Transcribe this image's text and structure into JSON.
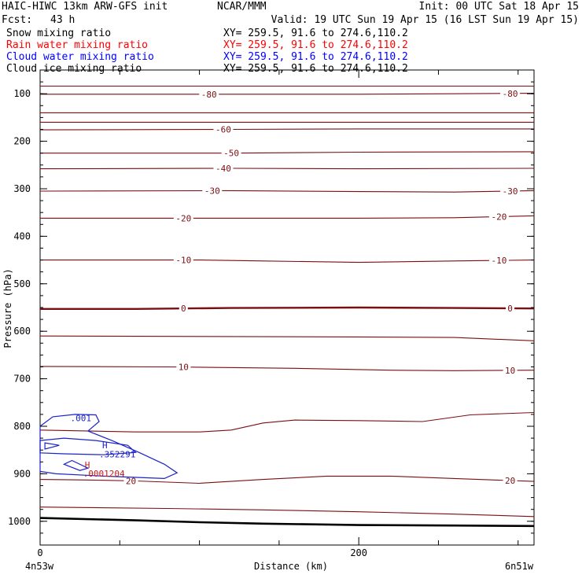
{
  "header": {
    "model_line": "HAIC-HIWC 13km ARW-GFS init",
    "org": "NCAR/MMM",
    "init": "Init: 00 UTC Sat 18 Apr 15",
    "fcst_label": "Fcst:",
    "fcst_value": "43 h",
    "valid": "Valid: 19 UTC Sun 19 Apr 15 (16 LST Sun 19 Apr 15)",
    "fields": [
      {
        "name": "Snow mixing ratio",
        "xy": "XY= 259.5, 91.6 to 274.6,110.2",
        "color": "#000000"
      },
      {
        "name": "Rain water mixing ratio",
        "xy": "XY= 259.5, 91.6 to 274.6,110.2",
        "color": "#ff0000"
      },
      {
        "name": "Cloud water mixing ratio",
        "xy": "XY= 259.5, 91.6 to 274.6,110.2",
        "color": "#0000ff"
      },
      {
        "name": "Cloud ice mixing ratio",
        "xy": "XY= 259.5, 91.6 to 274.6,110.2",
        "color": "#000000"
      }
    ]
  },
  "chart_data": {
    "type": "line",
    "xlabel": "Distance (km)",
    "ylabel": "Pressure (hPa)",
    "xlim": [
      0,
      310
    ],
    "ylim": [
      1050,
      50
    ],
    "x_ticks": [
      0,
      200
    ],
    "x_minor_ticks": [
      50,
      100,
      150,
      250,
      300
    ],
    "y_ticks": [
      100,
      200,
      300,
      400,
      500,
      600,
      700,
      800,
      900,
      1000
    ],
    "y_minor_step": 25,
    "endpoint_labels": {
      "left": "4n53w",
      "right": "6n51w"
    },
    "colors": {
      "temperature": "#7a0f12",
      "cloud_water": "#1a23c8",
      "rain": "#c81a1a",
      "terrain": "#000000",
      "frame": "#000000"
    },
    "isotherms": [
      {
        "value": 0,
        "label": "0",
        "bold": true,
        "points": [
          [
            0,
            553
          ],
          [
            60,
            553
          ],
          [
            120,
            551
          ],
          [
            200,
            550
          ],
          [
            260,
            551
          ],
          [
            310,
            552
          ]
        ],
        "label_x": [
          90,
          295
        ]
      },
      {
        "value": -10,
        "label": "-10",
        "points": [
          [
            0,
            450
          ],
          [
            100,
            450
          ],
          [
            140,
            452
          ],
          [
            200,
            455
          ],
          [
            260,
            452
          ],
          [
            310,
            450
          ]
        ],
        "label_x": [
          90,
          288
        ]
      },
      {
        "value": -20,
        "label": "-20",
        "points": [
          [
            0,
            362
          ],
          [
            120,
            362
          ],
          [
            200,
            362
          ],
          [
            260,
            361
          ],
          [
            310,
            357
          ]
        ],
        "label_x": [
          90,
          288
        ]
      },
      {
        "value": -30,
        "label": "-30",
        "points": [
          [
            0,
            305
          ],
          [
            120,
            304
          ],
          [
            200,
            306
          ],
          [
            260,
            307
          ],
          [
            310,
            304
          ]
        ],
        "label_x": [
          108,
          295
        ]
      },
      {
        "value": -40,
        "label": "-40",
        "points": [
          [
            0,
            258
          ],
          [
            120,
            257
          ],
          [
            200,
            258
          ],
          [
            310,
            257
          ]
        ],
        "label_x": [
          115
        ]
      },
      {
        "value": -50,
        "label": "-50",
        "points": [
          [
            0,
            225
          ],
          [
            120,
            225
          ],
          [
            200,
            223
          ],
          [
            310,
            222
          ]
        ],
        "label_x": [
          120
        ]
      },
      {
        "value": -60,
        "label": "-60",
        "points": [
          [
            0,
            176
          ],
          [
            120,
            175
          ],
          [
            200,
            174
          ],
          [
            310,
            174
          ]
        ],
        "label_x": [
          115
        ]
      },
      {
        "value": -70,
        "label": "",
        "points": [
          [
            0,
            160
          ],
          [
            310,
            160
          ]
        ],
        "label_x": []
      },
      {
        "value": -75,
        "label": "",
        "points": [
          [
            0,
            140
          ],
          [
            310,
            140
          ]
        ],
        "label_x": []
      },
      {
        "value": -80,
        "label": "-80",
        "points": [
          [
            0,
            101
          ],
          [
            120,
            101
          ],
          [
            200,
            101
          ],
          [
            260,
            100
          ],
          [
            310,
            99
          ]
        ],
        "label_x": [
          106,
          295
        ]
      },
      {
        "value": -90,
        "label": "",
        "points": [
          [
            0,
            84
          ],
          [
            310,
            84
          ]
        ],
        "label_x": []
      },
      {
        "value": 10,
        "label": "10",
        "points": [
          [
            0,
            674
          ],
          [
            80,
            675
          ],
          [
            160,
            678
          ],
          [
            220,
            682
          ],
          [
            260,
            683
          ],
          [
            310,
            682
          ]
        ],
        "label_x": [
          90,
          295
        ]
      },
      {
        "value": 15,
        "label": "",
        "points": [
          [
            0,
            610
          ],
          [
            100,
            611
          ],
          [
            200,
            612
          ],
          [
            260,
            613
          ],
          [
            310,
            620
          ]
        ],
        "label_x": []
      },
      {
        "value": 20,
        "label": "20",
        "points": [
          [
            0,
            912
          ],
          [
            30,
            913
          ],
          [
            60,
            915
          ],
          [
            100,
            920
          ],
          [
            140,
            912
          ],
          [
            180,
            905
          ],
          [
            220,
            905
          ],
          [
            260,
            910
          ],
          [
            310,
            916
          ]
        ],
        "label_x": [
          57,
          295
        ]
      },
      {
        "value": 5,
        "label": "",
        "points": [
          [
            0,
            808
          ],
          [
            60,
            812
          ],
          [
            100,
            812
          ],
          [
            120,
            808
          ],
          [
            140,
            793
          ],
          [
            160,
            787
          ],
          [
            200,
            788
          ],
          [
            240,
            790
          ],
          [
            270,
            776
          ],
          [
            310,
            771
          ]
        ],
        "label_x": []
      },
      {
        "value": 25,
        "label": "",
        "points": [
          [
            0,
            970
          ],
          [
            80,
            973
          ],
          [
            140,
            976
          ],
          [
            200,
            980
          ],
          [
            260,
            985
          ],
          [
            310,
            990
          ]
        ],
        "label_x": []
      }
    ],
    "terrain": {
      "points": [
        [
          0,
          993
        ],
        [
          60,
          998
        ],
        [
          100,
          1002
        ],
        [
          140,
          1005
        ],
        [
          200,
          1008
        ],
        [
          260,
          1009
        ],
        [
          310,
          1010
        ]
      ]
    },
    "cloud_water": {
      "contour_label": ".001",
      "max_label": "H",
      "max_value": ".352291",
      "contours": [
        [
          [
            0,
            800
          ],
          [
            8,
            780
          ],
          [
            22,
            775
          ],
          [
            35,
            776
          ],
          [
            37,
            790
          ],
          [
            30,
            810
          ],
          [
            45,
            830
          ],
          [
            62,
            855
          ],
          [
            78,
            880
          ],
          [
            86,
            898
          ],
          [
            78,
            910
          ],
          [
            40,
            905
          ],
          [
            10,
            900
          ],
          [
            0,
            895
          ]
        ],
        [
          [
            0,
            830
          ],
          [
            15,
            825
          ],
          [
            35,
            830
          ],
          [
            55,
            840
          ],
          [
            60,
            855
          ],
          [
            40,
            860
          ],
          [
            15,
            858
          ],
          [
            0,
            856
          ]
        ],
        [
          [
            3,
            835
          ],
          [
            12,
            840
          ],
          [
            3,
            848
          ]
        ],
        [
          [
            15,
            880
          ],
          [
            20,
            872
          ],
          [
            30,
            888
          ],
          [
            25,
            893
          ]
        ]
      ]
    },
    "rain": {
      "max_label": "H",
      "max_value": ".0001204"
    }
  }
}
